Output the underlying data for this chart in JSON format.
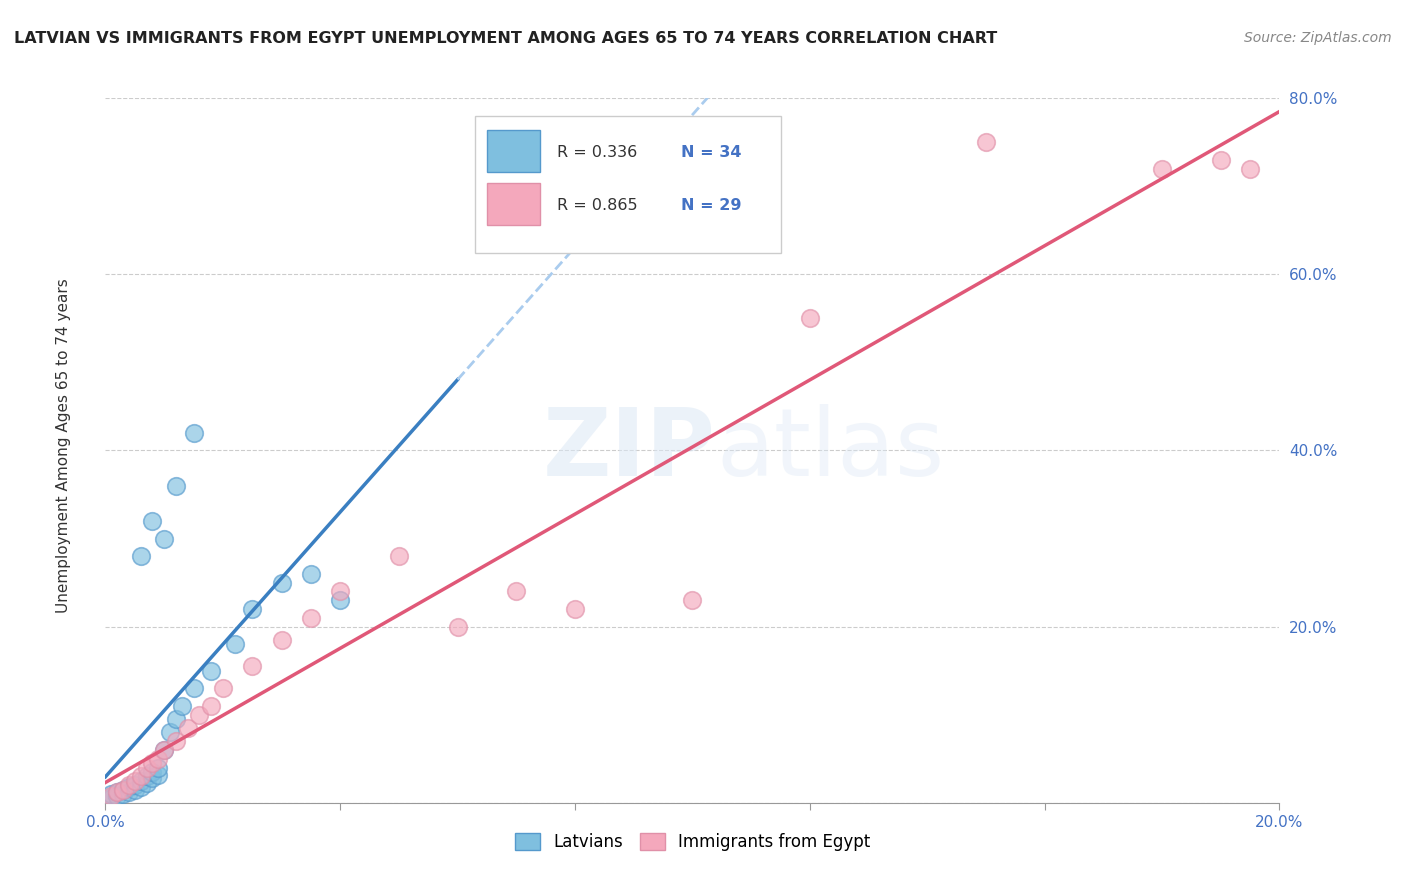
{
  "title": "LATVIAN VS IMMIGRANTS FROM EGYPT UNEMPLOYMENT AMONG AGES 65 TO 74 YEARS CORRELATION CHART",
  "source": "Source: ZipAtlas.com",
  "ylabel": "Unemployment Among Ages 65 to 74 years",
  "xlim": [
    0.0,
    0.2
  ],
  "ylim": [
    0.0,
    0.8
  ],
  "xticks": [
    0.0,
    0.04,
    0.08,
    0.12,
    0.16,
    0.2
  ],
  "yticks": [
    0.0,
    0.2,
    0.4,
    0.6,
    0.8
  ],
  "xtick_labels": [
    "0.0%",
    "",
    "",
    "",
    "",
    "20.0%"
  ],
  "ytick_labels": [
    "",
    "20.0%",
    "40.0%",
    "60.0%",
    "80.0%"
  ],
  "latvian_color": "#7fbfdf",
  "egypt_color": "#f4a8bc",
  "latvian_line_color": "#3a7fc1",
  "egypt_line_color": "#e05878",
  "latvian_scatter_x": [
    0.001,
    0.001,
    0.002,
    0.002,
    0.003,
    0.003,
    0.004,
    0.004,
    0.005,
    0.005,
    0.006,
    0.006,
    0.007,
    0.007,
    0.008,
    0.008,
    0.009,
    0.009,
    0.01,
    0.011,
    0.012,
    0.013,
    0.015,
    0.018,
    0.022,
    0.025,
    0.03,
    0.035,
    0.04,
    0.01,
    0.012,
    0.015,
    0.008,
    0.006
  ],
  "latvian_scatter_y": [
    0.005,
    0.01,
    0.008,
    0.012,
    0.01,
    0.015,
    0.012,
    0.018,
    0.015,
    0.02,
    0.018,
    0.025,
    0.022,
    0.03,
    0.028,
    0.035,
    0.032,
    0.04,
    0.06,
    0.08,
    0.095,
    0.11,
    0.13,
    0.15,
    0.18,
    0.22,
    0.25,
    0.26,
    0.23,
    0.3,
    0.36,
    0.42,
    0.32,
    0.28
  ],
  "egypt_scatter_x": [
    0.001,
    0.002,
    0.003,
    0.004,
    0.005,
    0.006,
    0.007,
    0.008,
    0.009,
    0.01,
    0.012,
    0.014,
    0.016,
    0.018,
    0.02,
    0.025,
    0.03,
    0.035,
    0.04,
    0.05,
    0.06,
    0.07,
    0.08,
    0.1,
    0.12,
    0.15,
    0.18,
    0.19,
    0.195
  ],
  "egypt_scatter_y": [
    0.008,
    0.012,
    0.015,
    0.02,
    0.025,
    0.03,
    0.04,
    0.045,
    0.05,
    0.06,
    0.07,
    0.085,
    0.1,
    0.11,
    0.13,
    0.155,
    0.185,
    0.21,
    0.24,
    0.28,
    0.2,
    0.24,
    0.22,
    0.23,
    0.55,
    0.75,
    0.72,
    0.73,
    0.72
  ]
}
